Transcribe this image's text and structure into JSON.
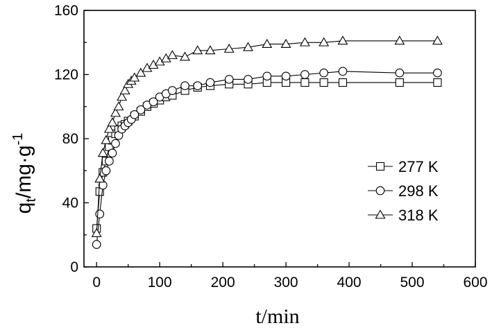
{
  "chart_data": {
    "type": "scatter",
    "title": "",
    "xlabel": "t/min",
    "ylabel": {
      "base": "q",
      "sub": "t",
      "rest": "/mg·g",
      "sup": "-1"
    },
    "xlim": [
      -20,
      600
    ],
    "ylim": [
      0,
      160
    ],
    "xticks": [
      0,
      100,
      200,
      300,
      400,
      500,
      600
    ],
    "yticks": [
      0,
      40,
      80,
      120,
      160
    ],
    "grid": false,
    "legend": {
      "placement": "lower-right"
    },
    "series": [
      {
        "name": "277 K",
        "marker": "square",
        "x": [
          0,
          5,
          10,
          15,
          20,
          25,
          30,
          35,
          40,
          45,
          50,
          60,
          70,
          80,
          90,
          100,
          110,
          120,
          140,
          160,
          180,
          210,
          240,
          270,
          300,
          330,
          360,
          390,
          480,
          540
        ],
        "y": [
          24,
          47,
          59,
          66,
          75,
          79,
          83,
          86,
          88,
          89,
          91,
          94,
          97,
          100,
          102,
          104,
          106,
          107,
          110,
          112,
          113,
          114,
          114,
          115,
          115,
          115,
          115,
          115,
          115,
          115
        ]
      },
      {
        "name": "298 K",
        "marker": "circle",
        "x": [
          0,
          5,
          10,
          15,
          20,
          25,
          30,
          35,
          40,
          45,
          50,
          55,
          60,
          70,
          80,
          90,
          100,
          110,
          120,
          140,
          160,
          180,
          210,
          240,
          270,
          300,
          330,
          360,
          390,
          480,
          540
        ],
        "y": [
          14,
          33,
          51,
          60,
          66,
          71,
          77,
          82,
          86,
          88,
          90,
          92,
          95,
          98,
          101,
          103,
          106,
          108,
          110,
          113,
          113,
          115,
          117,
          117,
          119,
          119,
          120,
          121,
          122,
          121,
          121
        ]
      },
      {
        "name": "318 K",
        "marker": "triangle",
        "x": [
          0,
          5,
          10,
          15,
          20,
          25,
          30,
          35,
          40,
          45,
          50,
          55,
          60,
          70,
          80,
          90,
          100,
          110,
          120,
          140,
          160,
          180,
          210,
          240,
          270,
          300,
          330,
          360,
          390,
          480,
          540
        ],
        "y": [
          21,
          55,
          71,
          79,
          86,
          90,
          96,
          100,
          106,
          110,
          114,
          116,
          118,
          121,
          124,
          126,
          128,
          130,
          132,
          131,
          135,
          135,
          136,
          137,
          139,
          139,
          140,
          140,
          141,
          141,
          141
        ]
      }
    ]
  }
}
